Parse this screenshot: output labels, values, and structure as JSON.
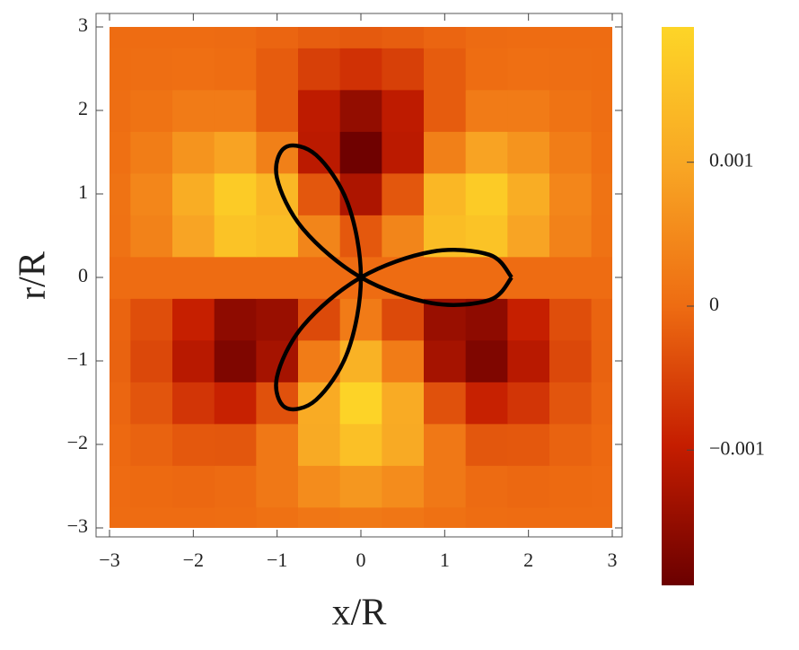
{
  "chart_data": {
    "type": "contour",
    "xlabel": "x/R",
    "ylabel": "r/R",
    "xlim": [
      -3,
      3
    ],
    "ylim": [
      -3,
      3
    ],
    "xticks": [
      {
        "value": -3,
        "label": "−3"
      },
      {
        "value": -2,
        "label": "−2"
      },
      {
        "value": -1,
        "label": "−1"
      },
      0,
      1,
      2,
      3
    ],
    "yticks": [
      {
        "value": -3,
        "label": "−3"
      },
      {
        "value": -2,
        "label": "−2"
      },
      {
        "value": -1,
        "label": "−1"
      },
      0,
      1,
      2,
      3
    ],
    "x": [
      -3,
      -2.5,
      -2,
      -1.5,
      -1,
      -0.5,
      0,
      0.5,
      1,
      1.5,
      2,
      2.5,
      3
    ],
    "y": [
      -3,
      -2.5,
      -2,
      -1.5,
      -1,
      -0.5,
      0,
      0.5,
      1,
      1.5,
      2,
      2.5,
      3
    ],
    "z": [
      [
        -2e-06,
        -5e-06,
        -6e-06,
        1.4e-05,
        8e-05,
        0.000175,
        0.000223,
        0.000175,
        8e-05,
        1.4e-05,
        -6e-06,
        -5e-06,
        -2e-06
      ],
      [
        -9e-06,
        -2.9e-05,
        -5.4e-05,
        -1.4e-05,
        0.000201,
        0.000542,
        0.000719,
        0.000542,
        0.000201,
        -1.4e-05,
        -5.4e-05,
        -2.9e-05,
        -9e-06
      ],
      [
        -3.1e-05,
        -0.000111,
        -0.000247,
        -0.000253,
        0.000201,
        0.001045,
        0.001504,
        0.001045,
        0.000201,
        -0.000253,
        -0.000247,
        -0.000111,
        -3.1e-05
      ],
      [
        -7.5e-05,
        -0.000279,
        -0.000673,
        -0.000927,
        -0.000337,
        0.001082,
        0.001894,
        0.001082,
        -0.000337,
        -0.000927,
        -0.000673,
        -0.000279,
        -7.5e-05
      ],
      [
        -0.000115,
        -0.000439,
        -0.001106,
        -0.001725,
        -0.001314,
        0.000262,
        0.001225,
        0.000262,
        -0.001314,
        -0.001725,
        -0.001106,
        -0.000439,
        -0.000115
      ],
      [
        -9.5e-05,
        -0.000364,
        -0.000944,
        -0.001563,
        -0.001442,
        -0.000419,
        0.000245,
        -0.000419,
        -0.001442,
        -0.001563,
        -0.000944,
        -0.000364,
        -9.5e-05
      ],
      [
        0,
        0,
        0,
        0,
        0,
        0,
        0,
        0,
        0,
        0,
        0,
        0,
        0
      ],
      [
        9.5e-05,
        0.000364,
        0.000944,
        0.001563,
        0.001442,
        0.000419,
        -0.000245,
        0.000419,
        0.001442,
        0.001563,
        0.000944,
        0.000364,
        9.5e-05
      ],
      [
        0.000115,
        0.000439,
        0.001106,
        0.001725,
        0.001314,
        -0.000262,
        -0.001225,
        -0.000262,
        0.001314,
        0.001725,
        0.001106,
        0.000439,
        0.000115
      ],
      [
        7.5e-05,
        0.000279,
        0.000673,
        0.000927,
        0.000337,
        -0.001082,
        -0.001894,
        -0.001082,
        0.000337,
        0.000927,
        0.000673,
        0.000279,
        7.5e-05
      ],
      [
        3.1e-05,
        0.000111,
        0.000247,
        0.000253,
        -0.000201,
        -0.001045,
        -0.001504,
        -0.001045,
        -0.000201,
        0.000253,
        0.000247,
        0.000111,
        3.1e-05
      ],
      [
        9e-06,
        2.9e-05,
        5.4e-05,
        1.4e-05,
        -0.000201,
        -0.000542,
        -0.000719,
        -0.000542,
        -0.000201,
        1.4e-05,
        5.4e-05,
        2.9e-05,
        9e-06
      ],
      [
        2e-06,
        5e-06,
        6e-06,
        -1.4e-05,
        -8e-05,
        -0.000175,
        -0.000223,
        -0.000175,
        -8e-05,
        -1.4e-05,
        6e-06,
        5e-06,
        2e-06
      ]
    ],
    "colormap": [
      "#6b0000",
      "#c51d00",
      "#ee6c12",
      "#f8a624",
      "#fdd527"
    ],
    "colorbar": {
      "lim": [
        -0.00194,
        0.00194
      ],
      "ticks": [
        {
          "value": -0.001,
          "label": "−0.001"
        },
        0,
        0.001
      ]
    },
    "curve": {
      "color": "#000000",
      "x": [
        1.8,
        1.535,
        0.846,
        0,
        -0.689,
        -1.002,
        -0.9,
        -0.533,
        -0.156,
        0,
        -0.156,
        -0.533,
        -0.9,
        -1.002,
        -0.689,
        0,
        0.846,
        1.535,
        1.8
      ],
      "y": [
        0,
        0.271,
        0.308,
        0,
        -0.579,
        -1.194,
        -1.559,
        -1.465,
        -0.886,
        0,
        0.886,
        1.465,
        1.559,
        1.194,
        0.579,
        0,
        -0.308,
        -0.271,
        0
      ]
    }
  }
}
